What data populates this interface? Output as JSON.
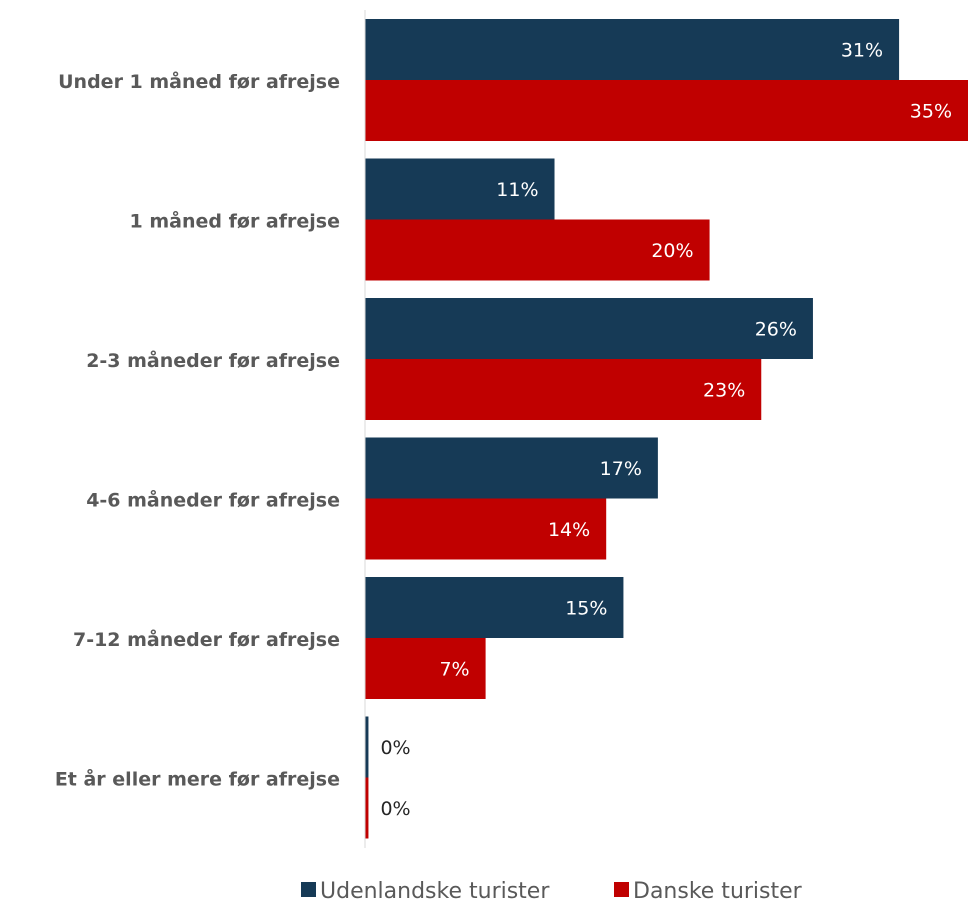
{
  "chart_data": {
    "type": "bar",
    "orientation": "horizontal",
    "categories": [
      "Under 1 måned før afrejse",
      "1 måned før afrejse",
      "2-3 måneder før afrejse",
      "4-6 måneder før afrejse",
      "7-12 måneder før afrejse",
      "Et år eller mere før afrejse"
    ],
    "series": [
      {
        "name": "Udenlandske turister",
        "color": "#163a56",
        "values": [
          31,
          11,
          26,
          17,
          15,
          0.2
        ],
        "labels": [
          "31%",
          "11%",
          "26%",
          "17%",
          "15%",
          "0%"
        ]
      },
      {
        "name": "Danske turister",
        "color": "#c00000",
        "values": [
          35,
          20,
          23,
          14,
          7,
          0.2
        ],
        "labels": [
          "35%",
          "20%",
          "23%",
          "14%",
          "7%",
          "0%"
        ]
      }
    ],
    "xlim": [
      0,
      35
    ],
    "grid": false,
    "legend_position": "bottom"
  }
}
